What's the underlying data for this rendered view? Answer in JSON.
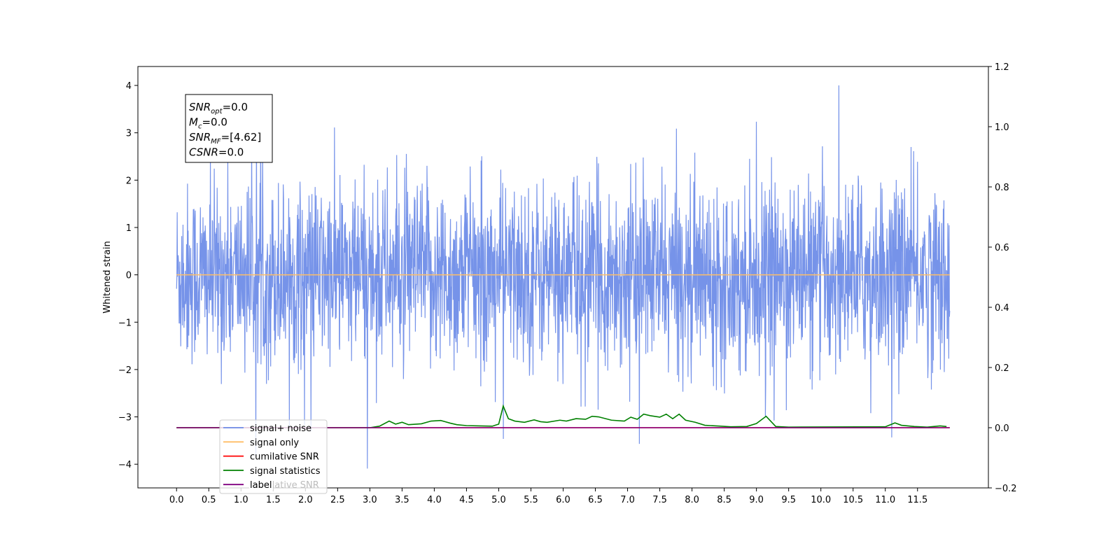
{
  "chart_data": {
    "type": "line",
    "title": "",
    "ylabel": "Whitened strain",
    "xlabel": "",
    "xlim": [
      -0.6,
      12.6
    ],
    "ylim": [
      -4.5,
      4.4
    ],
    "y2lim": [
      -0.2,
      1.2
    ],
    "xticks": [
      "0.0",
      "0.5",
      "1.0",
      "1.5",
      "2.0",
      "2.5",
      "3.0",
      "3.5",
      "4.0",
      "4.5",
      "5.0",
      "5.5",
      "6.0",
      "6.5",
      "7.0",
      "7.5",
      "8.0",
      "8.5",
      "9.0",
      "9.5",
      "10.0",
      "10.5",
      "11.0",
      "11.5"
    ],
    "yticks": [
      "4",
      "3",
      "2",
      "1",
      "0",
      "−1",
      "−2",
      "−3",
      "−4"
    ],
    "y2ticks": [
      "1.2",
      "1.0",
      "0.8",
      "0.6",
      "0.4",
      "0.2",
      "0.0",
      "−0.2"
    ],
    "series": [
      {
        "name": "signal+ noise",
        "color": "#6f8de8",
        "axis": "left",
        "description": "noise band",
        "x_range": [
          0.0,
          12.0
        ],
        "y_range": [
          -4.1,
          4.0
        ]
      },
      {
        "name": "signal only",
        "color": "#ffbe66",
        "axis": "left",
        "x": [
          0.0,
          12.0
        ],
        "y": [
          0.0,
          0.0
        ]
      },
      {
        "name": "cumilative SNR",
        "color": "#ff0000",
        "axis": "right",
        "x": [
          0.0,
          12.0
        ],
        "y": [
          0.0,
          0.0
        ]
      },
      {
        "name": "signal statistics",
        "color": "#008000",
        "axis": "right",
        "x": [
          0.0,
          3.0,
          3.15,
          3.3,
          3.4,
          3.5,
          3.6,
          3.8,
          3.95,
          4.1,
          4.25,
          4.35,
          4.5,
          4.7,
          4.9,
          5.0,
          5.07,
          5.15,
          5.25,
          5.4,
          5.55,
          5.65,
          5.75,
          5.95,
          6.05,
          6.2,
          6.35,
          6.45,
          6.55,
          6.75,
          6.95,
          7.05,
          7.15,
          7.25,
          7.35,
          7.5,
          7.6,
          7.7,
          7.8,
          7.9,
          8.05,
          8.2,
          8.45,
          8.6,
          8.85,
          9.0,
          9.15,
          9.3,
          9.5,
          11.0,
          11.15,
          11.25,
          11.45,
          11.65,
          11.85,
          11.95
        ],
        "y": [
          0.0,
          0.0,
          0.005,
          0.022,
          0.012,
          0.018,
          0.01,
          0.013,
          0.022,
          0.024,
          0.015,
          0.01,
          0.007,
          0.006,
          0.005,
          0.012,
          0.072,
          0.03,
          0.022,
          0.018,
          0.026,
          0.02,
          0.018,
          0.025,
          0.022,
          0.03,
          0.028,
          0.038,
          0.036,
          0.025,
          0.022,
          0.035,
          0.028,
          0.045,
          0.04,
          0.035,
          0.045,
          0.03,
          0.045,
          0.025,
          0.018,
          0.008,
          0.005,
          0.003,
          0.004,
          0.014,
          0.038,
          0.004,
          0.002,
          0.003,
          0.016,
          0.008,
          0.004,
          0.002,
          0.006,
          0.004
        ]
      },
      {
        "name": "label",
        "color": "#800080",
        "axis": "right",
        "x": [
          0.0,
          12.0
        ],
        "y": [
          0.0,
          0.0
        ]
      }
    ],
    "legend": {
      "placement": "lower-left",
      "entries": [
        "signal+ noise",
        "signal only",
        "cumilative SNR",
        "signal statistics",
        "label"
      ],
      "hidden_entry": "cumilative SNR"
    },
    "annotation_box": {
      "lines": [
        {
          "main": "SNR",
          "sub": "opt",
          "rest": "=0.0"
        },
        {
          "main": "M",
          "sub": "c",
          "rest": "=0.0"
        },
        {
          "main": "SNR",
          "sub": "MF",
          "rest": "=[4.62]"
        },
        {
          "main": "CSNR",
          "sub": "",
          "rest": "=0.0"
        }
      ]
    }
  }
}
